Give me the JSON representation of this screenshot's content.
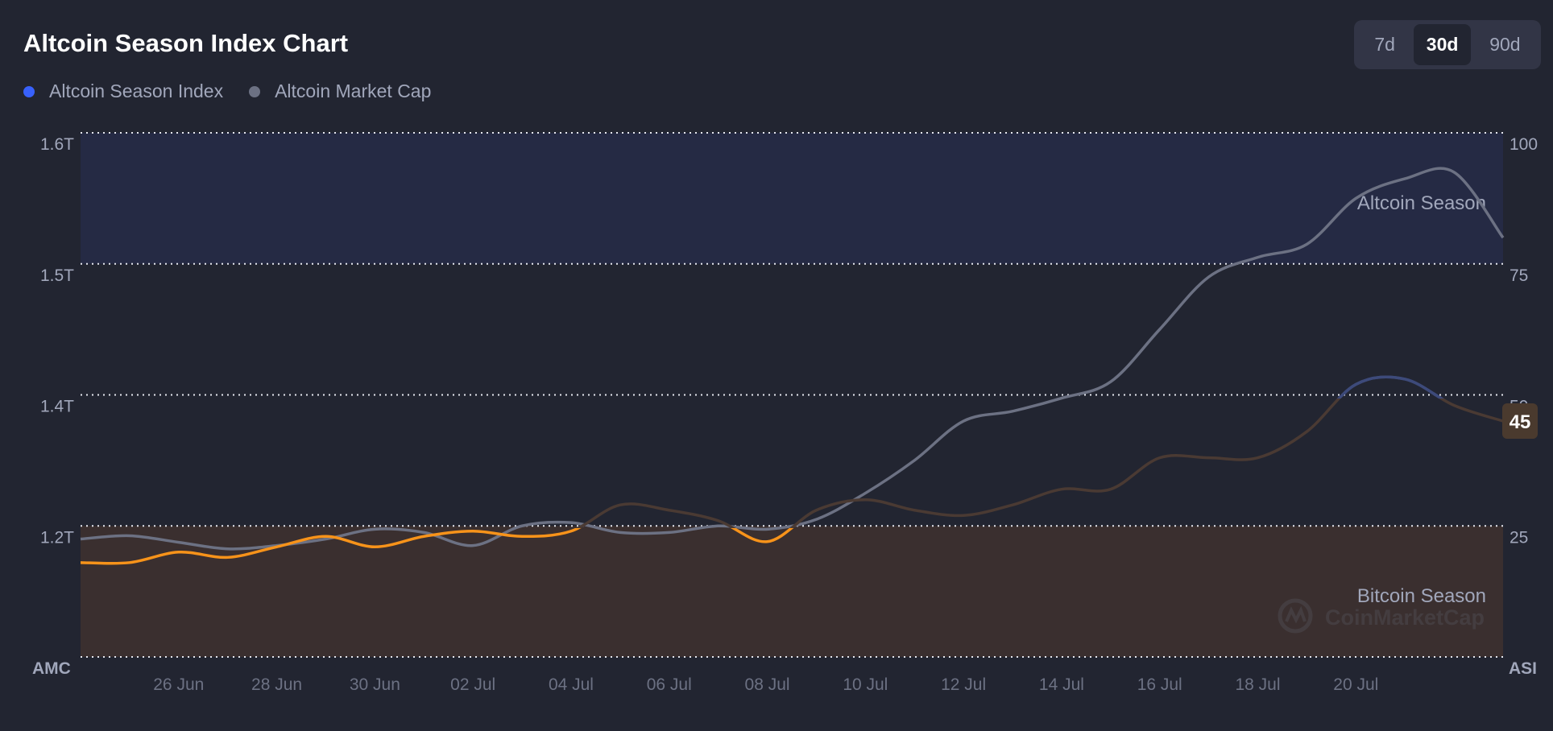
{
  "header": {
    "title": "Altcoin Season Index Chart"
  },
  "legend": [
    {
      "label": "Altcoin Season Index",
      "color": "#3861fb"
    },
    {
      "label": "Altcoin Market Cap",
      "color": "#6c7183"
    }
  ],
  "range": {
    "options": [
      "7d",
      "30d",
      "90d"
    ],
    "selected": "30d"
  },
  "chart_data": {
    "type": "line",
    "x_ticks": [
      "26 Jun",
      "28 Jun",
      "30 Jun",
      "02 Jul",
      "04 Jul",
      "06 Jul",
      "08 Jul",
      "10 Jul",
      "12 Jul",
      "14 Jul",
      "16 Jul",
      "18 Jul",
      "20 Jul"
    ],
    "left_axis": {
      "label": "AMC",
      "ticks": [
        "1.6T",
        "1.5T",
        "1.4T",
        "1.2T"
      ]
    },
    "right_axis": {
      "label": "ASI",
      "ticks": [
        "100",
        "75",
        "50",
        "25"
      ],
      "ylim": [
        0,
        100
      ]
    },
    "zones": [
      {
        "label": "Altcoin Season",
        "from": 75,
        "to": 100,
        "color": "#252a44"
      },
      {
        "label": "Bitcoin Season",
        "from": 0,
        "to": 25,
        "color": "#3a2f2f"
      }
    ],
    "current_value": "45",
    "watermark": "CoinMarketCap",
    "series": [
      {
        "name": "Altcoin Season Index",
        "axis": "right",
        "x": [
          "24 Jun",
          "25 Jun",
          "26 Jun",
          "27 Jun",
          "28 Jun",
          "29 Jun",
          "30 Jun",
          "01 Jul",
          "02 Jul",
          "03 Jul",
          "04 Jul",
          "05 Jul",
          "06 Jul",
          "07 Jul",
          "08 Jul",
          "09 Jul",
          "10 Jul",
          "11 Jul",
          "12 Jul",
          "13 Jul",
          "14 Jul",
          "15 Jul",
          "16 Jul",
          "17 Jul",
          "18 Jul",
          "19 Jul",
          "20 Jul",
          "21 Jul",
          "22 Jul",
          "23 Jul"
        ],
        "values": [
          18,
          18,
          20,
          19,
          21,
          23,
          21,
          23,
          24,
          23,
          24,
          29,
          28,
          26,
          22,
          28,
          30,
          28,
          27,
          29,
          32,
          32,
          38,
          38,
          38,
          43,
          52,
          53,
          48,
          45
        ]
      },
      {
        "name": "Altcoin Market Cap",
        "axis": "left",
        "x": [
          "24 Jun",
          "25 Jun",
          "26 Jun",
          "27 Jun",
          "28 Jun",
          "29 Jun",
          "30 Jun",
          "01 Jul",
          "02 Jul",
          "03 Jul",
          "04 Jul",
          "05 Jul",
          "06 Jul",
          "07 Jul",
          "08 Jul",
          "09 Jul",
          "10 Jul",
          "11 Jul",
          "12 Jul",
          "13 Jul",
          "14 Jul",
          "15 Jul",
          "16 Jul",
          "17 Jul",
          "18 Jul",
          "19 Jul",
          "20 Jul",
          "21 Jul",
          "22 Jul",
          "23 Jul"
        ],
        "values": [
          1.18,
          1.185,
          1.175,
          1.165,
          1.17,
          1.18,
          1.195,
          1.19,
          1.17,
          1.2,
          1.205,
          1.19,
          1.19,
          1.2,
          1.195,
          1.21,
          1.25,
          1.3,
          1.36,
          1.375,
          1.395,
          1.41,
          1.45,
          1.49,
          1.505,
          1.515,
          1.55,
          1.565,
          1.57,
          1.52
        ]
      }
    ]
  }
}
